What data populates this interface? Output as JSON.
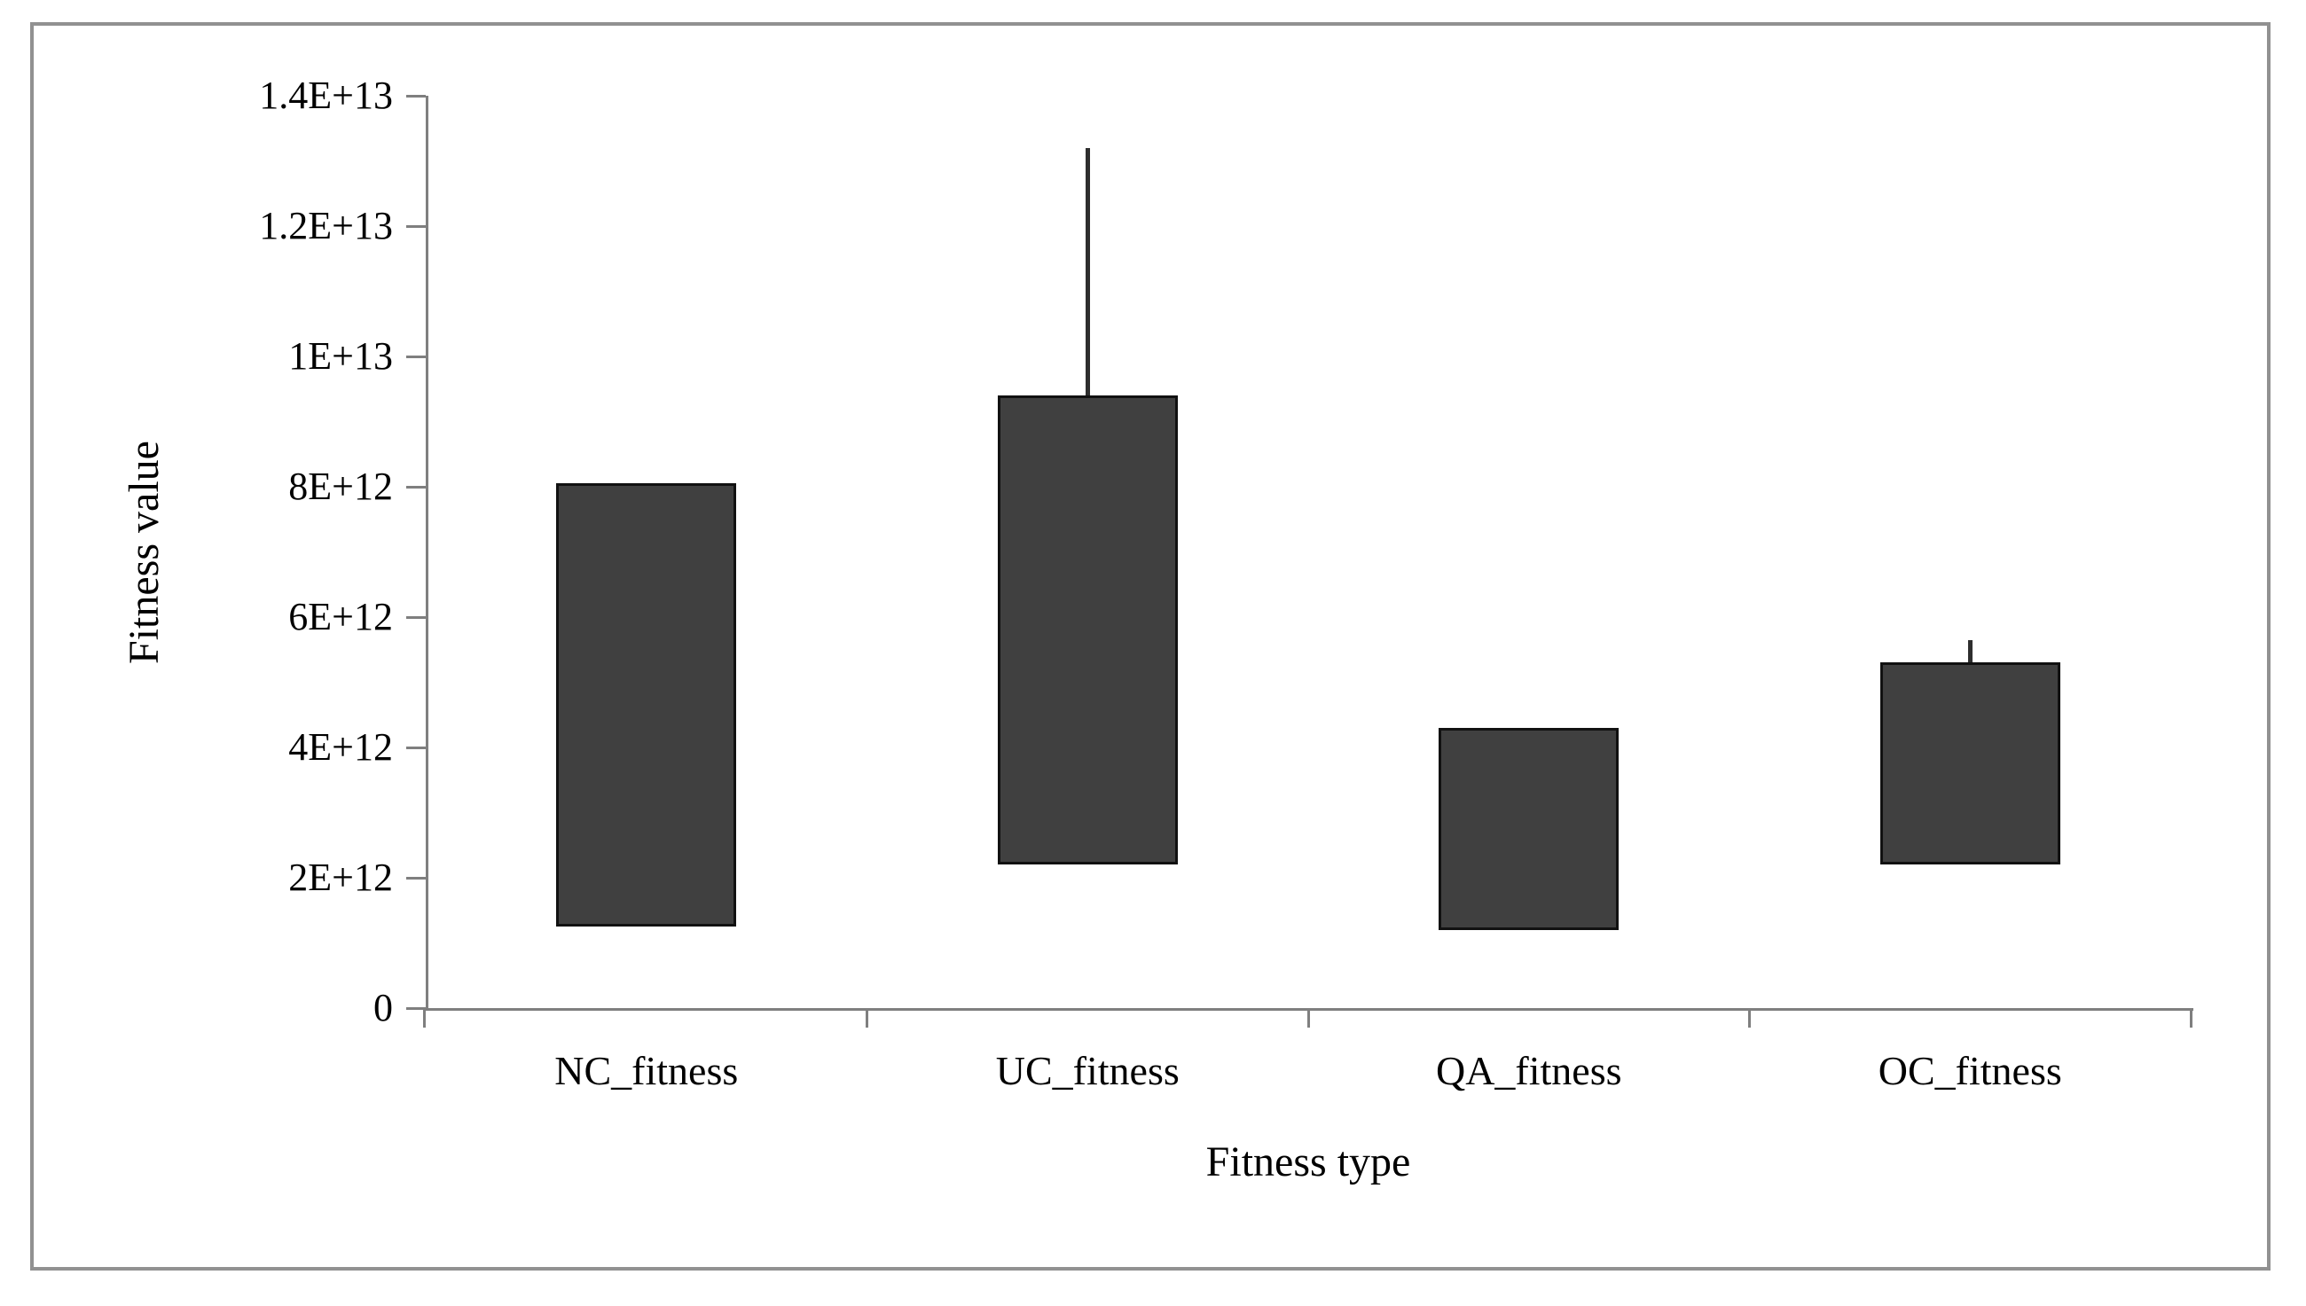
{
  "figure": {
    "background": "#ffffff",
    "border_color": "#919191"
  },
  "chart_data": {
    "type": "bar",
    "subtype": "floating-range-bars-with-error-whiskers",
    "title": "",
    "xlabel": "Fitness type",
    "ylabel": "Fitness value",
    "categories": [
      "NC_fitness",
      "UC_fitness",
      "QA_fitness",
      "OC_fitness"
    ],
    "points": [
      {
        "category": "NC_fitness",
        "low": 1250000000000.0,
        "high": 8050000000000.0,
        "error_high": null
      },
      {
        "category": "UC_fitness",
        "low": 2200000000000.0,
        "high": 9400000000000.0,
        "error_high": 13200000000000.0
      },
      {
        "category": "QA_fitness",
        "low": 1200000000000.0,
        "high": 4300000000000.0,
        "error_high": null
      },
      {
        "category": "OC_fitness",
        "low": 2200000000000.0,
        "high": 5300000000000.0,
        "error_high": 5650000000000.0
      }
    ],
    "ylim": [
      0,
      14000000000000.0
    ],
    "yticks": [
      {
        "value": 0,
        "label": "0"
      },
      {
        "value": 2000000000000.0,
        "label": "2E+12"
      },
      {
        "value": 4000000000000.0,
        "label": "4E+12"
      },
      {
        "value": 6000000000000.0,
        "label": "6E+12"
      },
      {
        "value": 8000000000000.0,
        "label": "8E+12"
      },
      {
        "value": 10000000000000.0,
        "label": "1E+13"
      },
      {
        "value": 12000000000000.0,
        "label": "1.2E+13"
      },
      {
        "value": 14000000000000.0,
        "label": "1.4E+13"
      }
    ],
    "grid": false,
    "legend": false,
    "bar_color": "#404040",
    "bar_border_color": "#111111",
    "error_bar_color": "#2e2e2e",
    "axis_color": "#7f7f7f"
  }
}
